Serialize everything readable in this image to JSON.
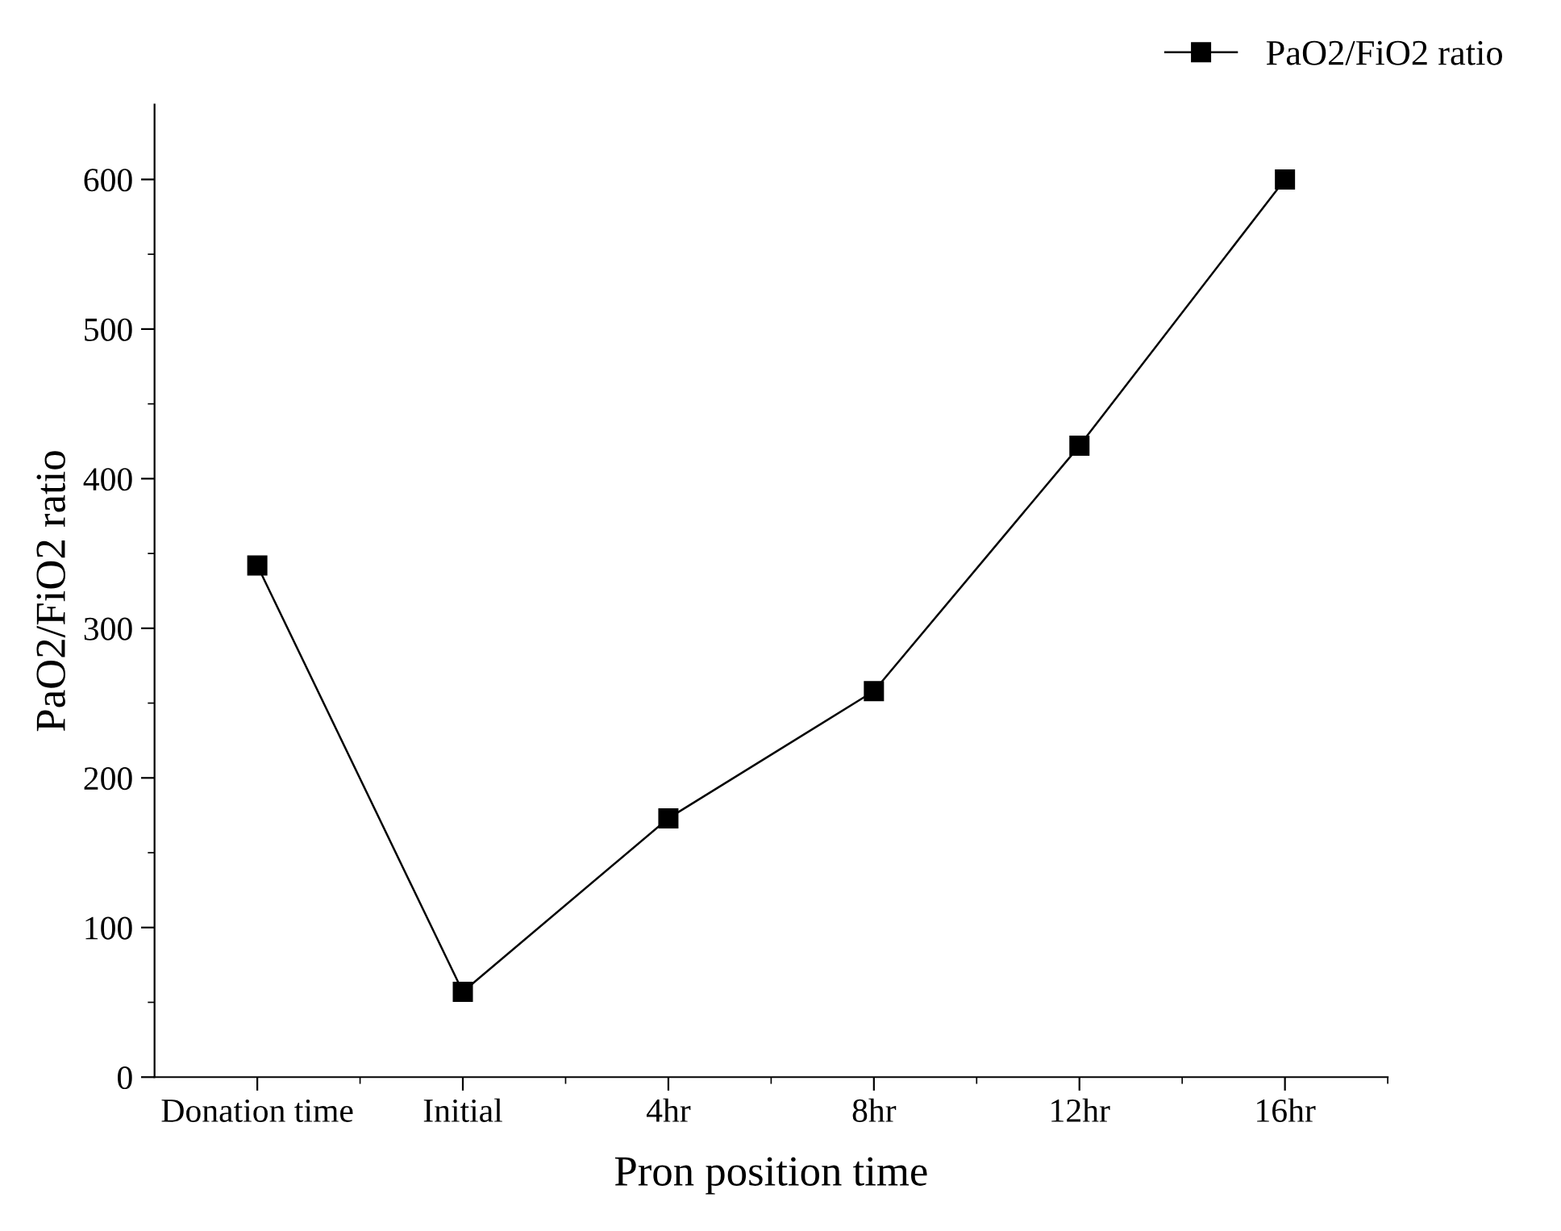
{
  "chart_data": {
    "type": "line",
    "xlabel": "Pron position time",
    "ylabel": "PaO2/FiO2 ratio",
    "categories": [
      "Donation time",
      "Initial",
      "4hr",
      "8hr",
      "12hr",
      "16hr"
    ],
    "series": [
      {
        "name": "PaO2/FiO2 ratio",
        "color": "#000000",
        "values": [
          342,
          57,
          173,
          258,
          422,
          600
        ]
      }
    ],
    "ylim": [
      0,
      650
    ],
    "yticks": [
      0,
      100,
      200,
      300,
      400,
      500,
      600
    ],
    "marker": "square",
    "line_style": "solid",
    "grid": false,
    "legend": "top right"
  }
}
